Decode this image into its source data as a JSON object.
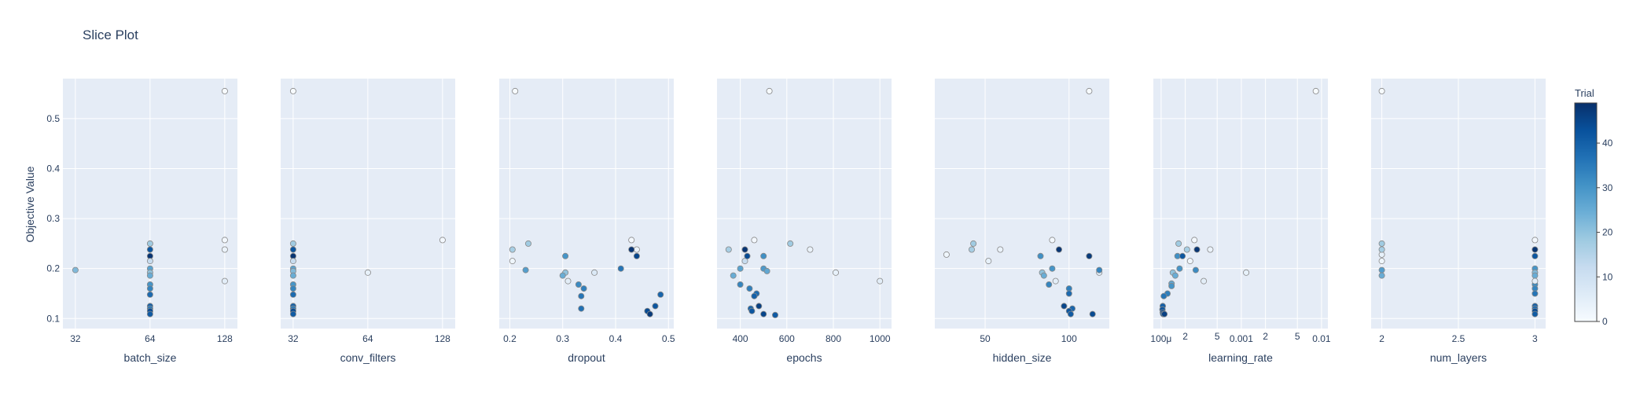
{
  "chart_data": {
    "type": "scatter",
    "title": "Slice Plot",
    "ylabel": "Objective Value",
    "ylim": [
      0.08,
      0.58
    ],
    "y_ticks": [
      0.1,
      0.2,
      0.3,
      0.4,
      0.5
    ],
    "y_tick_labels": [
      "0.1",
      "0.2",
      "0.3",
      "0.4",
      "0.5"
    ],
    "grid": true,
    "colorbar": {
      "title": "Trial",
      "range": [
        0,
        49
      ],
      "ticks": [
        0,
        10,
        20,
        30,
        40
      ],
      "tick_labels": [
        "0",
        "10",
        "20",
        "30",
        "40"
      ],
      "colorscale": [
        "#f7fbff",
        "#deebf7",
        "#c6dbef",
        "#9ecae1",
        "#6baed6",
        "#4292c6",
        "#2171b5",
        "#08519c",
        "#08306b"
      ]
    },
    "panels": [
      {
        "param": "batch_size",
        "scale": "log",
        "xlim": [
          28.5,
          144
        ],
        "ticks": [
          32,
          64,
          128
        ],
        "tick_labels": [
          "32",
          "64",
          "128"
        ],
        "points": [
          {
            "x": 128,
            "y": 0.555,
            "trial": 0
          },
          {
            "x": 128,
            "y": 0.257,
            "trial": 1
          },
          {
            "x": 128,
            "y": 0.238,
            "trial": 3
          },
          {
            "x": 128,
            "y": 0.175,
            "trial": 5
          },
          {
            "x": 32,
            "y": 0.197,
            "trial": 22
          },
          {
            "x": 64,
            "y": 0.25,
            "trial": 18
          },
          {
            "x": 64,
            "y": 0.238,
            "trial": 42
          },
          {
            "x": 64,
            "y": 0.225,
            "trial": 48
          },
          {
            "x": 64,
            "y": 0.215,
            "trial": 12
          },
          {
            "x": 64,
            "y": 0.2,
            "trial": 27
          },
          {
            "x": 64,
            "y": 0.192,
            "trial": 20
          },
          {
            "x": 64,
            "y": 0.186,
            "trial": 25
          },
          {
            "x": 64,
            "y": 0.168,
            "trial": 30
          },
          {
            "x": 64,
            "y": 0.16,
            "trial": 33
          },
          {
            "x": 64,
            "y": 0.148,
            "trial": 38
          },
          {
            "x": 64,
            "y": 0.125,
            "trial": 40
          },
          {
            "x": 64,
            "y": 0.12,
            "trial": 35
          },
          {
            "x": 64,
            "y": 0.115,
            "trial": 44
          },
          {
            "x": 64,
            "y": 0.109,
            "trial": 41
          }
        ]
      },
      {
        "param": "conv_filters",
        "scale": "log",
        "xlim": [
          28.5,
          144
        ],
        "ticks": [
          32,
          64,
          128
        ],
        "tick_labels": [
          "32",
          "64",
          "128"
        ],
        "points": [
          {
            "x": 32,
            "y": 0.555,
            "trial": 0
          },
          {
            "x": 128,
            "y": 0.257,
            "trial": 1
          },
          {
            "x": 64,
            "y": 0.192,
            "trial": 4
          },
          {
            "x": 32,
            "y": 0.25,
            "trial": 18
          },
          {
            "x": 32,
            "y": 0.238,
            "trial": 42
          },
          {
            "x": 32,
            "y": 0.225,
            "trial": 48
          },
          {
            "x": 32,
            "y": 0.215,
            "trial": 12
          },
          {
            "x": 32,
            "y": 0.2,
            "trial": 27
          },
          {
            "x": 32,
            "y": 0.195,
            "trial": 22
          },
          {
            "x": 32,
            "y": 0.186,
            "trial": 25
          },
          {
            "x": 32,
            "y": 0.168,
            "trial": 30
          },
          {
            "x": 32,
            "y": 0.16,
            "trial": 33
          },
          {
            "x": 32,
            "y": 0.148,
            "trial": 38
          },
          {
            "x": 32,
            "y": 0.125,
            "trial": 40
          },
          {
            "x": 32,
            "y": 0.12,
            "trial": 35
          },
          {
            "x": 32,
            "y": 0.115,
            "trial": 44
          },
          {
            "x": 32,
            "y": 0.109,
            "trial": 41
          }
        ]
      },
      {
        "param": "dropout",
        "scale": "linear",
        "xlim": [
          0.18,
          0.51
        ],
        "ticks": [
          0.2,
          0.3,
          0.4,
          0.5
        ],
        "tick_labels": [
          "0.2",
          "0.3",
          "0.4",
          "0.5"
        ],
        "points": [
          {
            "x": 0.21,
            "y": 0.555,
            "trial": 0
          },
          {
            "x": 0.43,
            "y": 0.257,
            "trial": 1
          },
          {
            "x": 0.205,
            "y": 0.215,
            "trial": 2
          },
          {
            "x": 0.44,
            "y": 0.238,
            "trial": 3
          },
          {
            "x": 0.31,
            "y": 0.175,
            "trial": 5
          },
          {
            "x": 0.36,
            "y": 0.192,
            "trial": 7
          },
          {
            "x": 0.235,
            "y": 0.25,
            "trial": 18
          },
          {
            "x": 0.205,
            "y": 0.238,
            "trial": 17
          },
          {
            "x": 0.305,
            "y": 0.192,
            "trial": 20
          },
          {
            "x": 0.3,
            "y": 0.186,
            "trial": 25
          },
          {
            "x": 0.23,
            "y": 0.197,
            "trial": 28
          },
          {
            "x": 0.305,
            "y": 0.225,
            "trial": 30
          },
          {
            "x": 0.33,
            "y": 0.168,
            "trial": 32
          },
          {
            "x": 0.34,
            "y": 0.16,
            "trial": 34
          },
          {
            "x": 0.335,
            "y": 0.145,
            "trial": 36
          },
          {
            "x": 0.335,
            "y": 0.12,
            "trial": 37
          },
          {
            "x": 0.41,
            "y": 0.2,
            "trial": 36
          },
          {
            "x": 0.43,
            "y": 0.238,
            "trial": 48
          },
          {
            "x": 0.44,
            "y": 0.225,
            "trial": 45
          },
          {
            "x": 0.485,
            "y": 0.148,
            "trial": 39
          },
          {
            "x": 0.475,
            "y": 0.125,
            "trial": 42
          },
          {
            "x": 0.46,
            "y": 0.115,
            "trial": 44
          },
          {
            "x": 0.465,
            "y": 0.109,
            "trial": 47
          }
        ]
      },
      {
        "param": "epochs",
        "scale": "linear",
        "xlim": [
          300,
          1050
        ],
        "ticks": [
          400,
          600,
          800,
          1000
        ],
        "tick_labels": [
          "400",
          "600",
          "800",
          "1000"
        ],
        "points": [
          {
            "x": 525,
            "y": 0.555,
            "trial": 0
          },
          {
            "x": 460,
            "y": 0.257,
            "trial": 1
          },
          {
            "x": 700,
            "y": 0.238,
            "trial": 3
          },
          {
            "x": 1000,
            "y": 0.175,
            "trial": 5
          },
          {
            "x": 810,
            "y": 0.192,
            "trial": 4
          },
          {
            "x": 350,
            "y": 0.238,
            "trial": 17
          },
          {
            "x": 615,
            "y": 0.25,
            "trial": 18
          },
          {
            "x": 370,
            "y": 0.186,
            "trial": 25
          },
          {
            "x": 420,
            "y": 0.215,
            "trial": 12
          },
          {
            "x": 400,
            "y": 0.2,
            "trial": 27
          },
          {
            "x": 500,
            "y": 0.2,
            "trial": 29
          },
          {
            "x": 515,
            "y": 0.195,
            "trial": 26
          },
          {
            "x": 500,
            "y": 0.225,
            "trial": 31
          },
          {
            "x": 420,
            "y": 0.238,
            "trial": 48
          },
          {
            "x": 430,
            "y": 0.225,
            "trial": 44
          },
          {
            "x": 400,
            "y": 0.168,
            "trial": 33
          },
          {
            "x": 440,
            "y": 0.16,
            "trial": 34
          },
          {
            "x": 470,
            "y": 0.15,
            "trial": 38
          },
          {
            "x": 460,
            "y": 0.145,
            "trial": 40
          },
          {
            "x": 480,
            "y": 0.125,
            "trial": 46
          },
          {
            "x": 445,
            "y": 0.12,
            "trial": 39
          },
          {
            "x": 450,
            "y": 0.115,
            "trial": 42
          },
          {
            "x": 500,
            "y": 0.109,
            "trial": 45
          },
          {
            "x": 550,
            "y": 0.107,
            "trial": 41
          }
        ]
      },
      {
        "param": "hidden_size",
        "scale": "linear",
        "xlim": [
          20,
          124
        ],
        "ticks": [
          50,
          100
        ],
        "tick_labels": [
          "50",
          "100"
        ],
        "points": [
          {
            "x": 112,
            "y": 0.555,
            "trial": 0
          },
          {
            "x": 90,
            "y": 0.257,
            "trial": 1
          },
          {
            "x": 27,
            "y": 0.228,
            "trial": 2
          },
          {
            "x": 59,
            "y": 0.238,
            "trial": 3
          },
          {
            "x": 92,
            "y": 0.175,
            "trial": 5
          },
          {
            "x": 52,
            "y": 0.215,
            "trial": 4
          },
          {
            "x": 118,
            "y": 0.192,
            "trial": 6
          },
          {
            "x": 42,
            "y": 0.238,
            "trial": 17
          },
          {
            "x": 43,
            "y": 0.25,
            "trial": 18
          },
          {
            "x": 84,
            "y": 0.192,
            "trial": 20
          },
          {
            "x": 85,
            "y": 0.186,
            "trial": 25
          },
          {
            "x": 83,
            "y": 0.225,
            "trial": 31
          },
          {
            "x": 90,
            "y": 0.2,
            "trial": 30
          },
          {
            "x": 88,
            "y": 0.168,
            "trial": 33
          },
          {
            "x": 94,
            "y": 0.238,
            "trial": 48
          },
          {
            "x": 100,
            "y": 0.16,
            "trial": 34
          },
          {
            "x": 100,
            "y": 0.15,
            "trial": 38
          },
          {
            "x": 97,
            "y": 0.125,
            "trial": 45
          },
          {
            "x": 102,
            "y": 0.12,
            "trial": 39
          },
          {
            "x": 100,
            "y": 0.115,
            "trial": 42
          },
          {
            "x": 101,
            "y": 0.109,
            "trial": 41
          },
          {
            "x": 112,
            "y": 0.225,
            "trial": 47
          },
          {
            "x": 118,
            "y": 0.197,
            "trial": 33
          },
          {
            "x": 114,
            "y": 0.109,
            "trial": 44
          }
        ]
      },
      {
        "param": "learning_rate",
        "scale": "log",
        "xlim": [
          8e-05,
          0.012
        ],
        "ticks": [
          0.0001,
          0.0002,
          0.0005,
          0.001,
          0.002,
          0.005,
          0.01
        ],
        "tick_labels": [
          "100μ",
          "2",
          "5",
          "0.001",
          "2",
          "5",
          "0.01"
        ],
        "points": [
          {
            "x": 0.0085,
            "y": 0.555,
            "trial": 0
          },
          {
            "x": 0.00026,
            "y": 0.257,
            "trial": 1
          },
          {
            "x": 0.00023,
            "y": 0.215,
            "trial": 2
          },
          {
            "x": 0.00041,
            "y": 0.238,
            "trial": 3
          },
          {
            "x": 0.00034,
            "y": 0.175,
            "trial": 5
          },
          {
            "x": 0.00115,
            "y": 0.192,
            "trial": 4
          },
          {
            "x": 0.00021,
            "y": 0.238,
            "trial": 17
          },
          {
            "x": 0.000165,
            "y": 0.25,
            "trial": 18
          },
          {
            "x": 0.00014,
            "y": 0.192,
            "trial": 20
          },
          {
            "x": 0.00015,
            "y": 0.186,
            "trial": 25
          },
          {
            "x": 0.000135,
            "y": 0.17,
            "trial": 26
          },
          {
            "x": 0.000135,
            "y": 0.165,
            "trial": 30
          },
          {
            "x": 0.00012,
            "y": 0.15,
            "trial": 34
          },
          {
            "x": 0.000108,
            "y": 0.145,
            "trial": 36
          },
          {
            "x": 0.00016,
            "y": 0.225,
            "trial": 31
          },
          {
            "x": 0.000185,
            "y": 0.225,
            "trial": 42
          },
          {
            "x": 0.00017,
            "y": 0.2,
            "trial": 30
          },
          {
            "x": 0.00027,
            "y": 0.197,
            "trial": 32
          },
          {
            "x": 0.00028,
            "y": 0.238,
            "trial": 48
          },
          {
            "x": 0.000105,
            "y": 0.125,
            "trial": 40
          },
          {
            "x": 0.000104,
            "y": 0.118,
            "trial": 42
          },
          {
            "x": 0.000105,
            "y": 0.112,
            "trial": 44
          },
          {
            "x": 0.000106,
            "y": 0.109,
            "trial": 41
          },
          {
            "x": 0.00011,
            "y": 0.109,
            "trial": 46
          }
        ]
      },
      {
        "param": "num_layers",
        "scale": "linear",
        "xlim": [
          1.93,
          3.07
        ],
        "ticks": [
          2,
          2.5,
          3
        ],
        "tick_labels": [
          "2",
          "2.5",
          "3"
        ],
        "points": [
          {
            "x": 2,
            "y": 0.555,
            "trial": 0
          },
          {
            "x": 3,
            "y": 0.257,
            "trial": 1
          },
          {
            "x": 2,
            "y": 0.215,
            "trial": 2
          },
          {
            "x": 2,
            "y": 0.228,
            "trial": 4
          },
          {
            "x": 2,
            "y": 0.25,
            "trial": 18
          },
          {
            "x": 2,
            "y": 0.238,
            "trial": 17
          },
          {
            "x": 2,
            "y": 0.197,
            "trial": 28
          },
          {
            "x": 2,
            "y": 0.186,
            "trial": 25
          },
          {
            "x": 3,
            "y": 0.238,
            "trial": 48
          },
          {
            "x": 3,
            "y": 0.225,
            "trial": 42
          },
          {
            "x": 3,
            "y": 0.2,
            "trial": 30
          },
          {
            "x": 3,
            "y": 0.192,
            "trial": 22
          },
          {
            "x": 3,
            "y": 0.186,
            "trial": 25
          },
          {
            "x": 3,
            "y": 0.168,
            "trial": 32
          },
          {
            "x": 3,
            "y": 0.16,
            "trial": 33
          },
          {
            "x": 3,
            "y": 0.15,
            "trial": 36
          },
          {
            "x": 3,
            "y": 0.125,
            "trial": 40
          },
          {
            "x": 3,
            "y": 0.12,
            "trial": 38
          },
          {
            "x": 3,
            "y": 0.115,
            "trial": 44
          },
          {
            "x": 3,
            "y": 0.109,
            "trial": 41
          },
          {
            "x": 3,
            "y": 0.175,
            "trial": 5
          }
        ]
      }
    ]
  }
}
